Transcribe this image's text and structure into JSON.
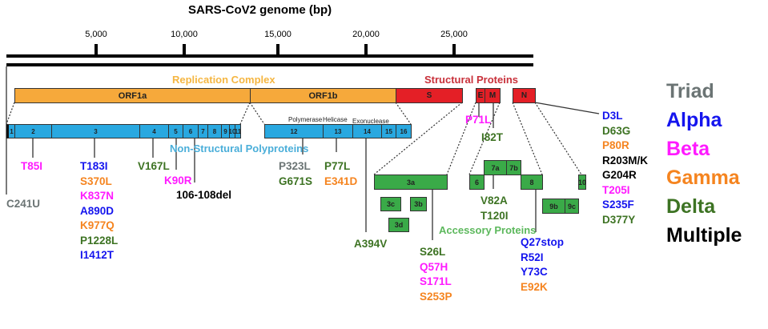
{
  "title": "SARS-CoV2 genome (bp)",
  "colors": {
    "Triad": "#6b7474",
    "Alpha": "#1414ee",
    "Beta": "#ff1aff",
    "Gamma": "#f5841f",
    "Delta": "#3d7323",
    "Multiple": "#000000",
    "orf": "#f6a93b",
    "structural": "#e41f26",
    "nsp": "#29a8e0",
    "accessory": "#3aaa48"
  },
  "axis": {
    "ticks": [
      "5,000",
      "10,000",
      "15,000",
      "20,000",
      "25,000"
    ]
  },
  "sections": {
    "replication": "Replication Complex",
    "structural": "Structural Proteins",
    "nonstructural": "Non-Structural Polyproteins",
    "accessory": "Accessory Proteins"
  },
  "orfs": {
    "orf1a": "ORF1a",
    "orf1b": "ORF1b",
    "s": "S",
    "e": "E",
    "m": "M",
    "n": "N"
  },
  "nsp": [
    "1",
    "2",
    "3",
    "4",
    "5",
    "6",
    "7",
    "8",
    "9",
    "10",
    "11",
    "12",
    "13",
    "14",
    "15",
    "16"
  ],
  "enzymes": {
    "polymerase": "Polymerase",
    "helicase": "Helicase",
    "exonuclease": "Exonuclease"
  },
  "accessory": {
    "a3a": "3a",
    "a3b": "3b",
    "a3c": "3c",
    "a3d": "3d",
    "a6": "6",
    "a7a": "7a",
    "a7b": "7b",
    "a8": "8",
    "a9b": "9b",
    "a9c": "9c",
    "a10": "10"
  },
  "mutations": {
    "utr": [
      {
        "text": "C241U",
        "variant": "Triad"
      }
    ],
    "nsp2": [
      {
        "text": "T85I",
        "variant": "Beta"
      }
    ],
    "nsp3": [
      {
        "text": "T183I",
        "variant": "Alpha"
      },
      {
        "text": "S370L",
        "variant": "Gamma"
      },
      {
        "text": "K837N",
        "variant": "Beta"
      },
      {
        "text": "A890D",
        "variant": "Alpha"
      },
      {
        "text": "K977Q",
        "variant": "Gamma"
      },
      {
        "text": "P1228L",
        "variant": "Delta"
      },
      {
        "text": "I1412T",
        "variant": "Alpha"
      }
    ],
    "nsp4": [
      {
        "text": "V167L",
        "variant": "Delta"
      }
    ],
    "nsp5": [
      {
        "text": "K90R",
        "variant": "Beta"
      }
    ],
    "nsp6": [
      {
        "text": "106-108del",
        "variant": "Multiple"
      }
    ],
    "nsp12": [
      {
        "text": "P323L",
        "variant": "Triad"
      },
      {
        "text": "G671S",
        "variant": "Delta"
      }
    ],
    "nsp13": [
      {
        "text": "P77L",
        "variant": "Delta"
      },
      {
        "text": "E341D",
        "variant": "Gamma"
      }
    ],
    "nsp14": [
      {
        "text": "A394V",
        "variant": "Delta"
      }
    ],
    "e": [
      {
        "text": "P71L",
        "variant": "Beta"
      }
    ],
    "m": [
      {
        "text": "I82T",
        "variant": "Delta"
      }
    ],
    "orf7a": [
      {
        "text": "V82A",
        "variant": "Delta"
      },
      {
        "text": "T120I",
        "variant": "Delta"
      }
    ],
    "orf3a": [
      {
        "text": "S26L",
        "variant": "Delta"
      },
      {
        "text": "Q57H",
        "variant": "Beta"
      },
      {
        "text": "S171L",
        "variant": "Beta"
      },
      {
        "text": "S253P",
        "variant": "Gamma"
      }
    ],
    "orf8": [
      {
        "text": "Q27stop",
        "variant": "Alpha"
      },
      {
        "text": "R52I",
        "variant": "Alpha"
      },
      {
        "text": "Y73C",
        "variant": "Alpha"
      },
      {
        "text": "E92K",
        "variant": "Gamma"
      }
    ],
    "n": [
      {
        "text": "D3L",
        "variant": "Alpha"
      },
      {
        "text": "D63G",
        "variant": "Delta"
      },
      {
        "text": "P80R",
        "variant": "Gamma"
      },
      {
        "text": "R203M/K",
        "variant": "Multiple"
      },
      {
        "text": "G204R",
        "variant": "Multiple"
      },
      {
        "text": "T205I",
        "variant": "Beta"
      },
      {
        "text": "S235F",
        "variant": "Alpha"
      },
      {
        "text": "D377Y",
        "variant": "Delta"
      }
    ]
  },
  "legend": [
    "Triad",
    "Alpha",
    "Beta",
    "Gamma",
    "Delta",
    "Multiple"
  ]
}
